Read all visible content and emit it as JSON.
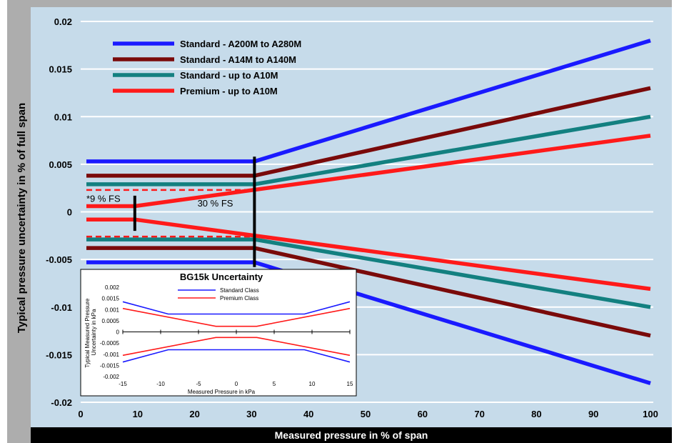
{
  "chart_data": [
    {
      "type": "line",
      "title": "",
      "xlabel": "Measured pressure in % of span",
      "ylabel": "Typical pressure uncertainty in % of full span",
      "xlim": [
        0,
        100
      ],
      "ylim": [
        -0.02,
        0.02
      ],
      "xticks": [
        0,
        10,
        20,
        30,
        40,
        50,
        60,
        70,
        80,
        90,
        100
      ],
      "xtick_labels": [
        "0",
        "10",
        "20",
        "30",
        "40",
        "50",
        "60",
        "70",
        "80",
        "90",
        "100"
      ],
      "yticks": [
        0.02,
        0.015,
        0.01,
        0.005,
        0,
        -0.005,
        -0.01,
        -0.015,
        -0.02
      ],
      "ytick_labels": [
        "0.02",
        "0.015",
        "0.01",
        "0.005",
        "0",
        "-0.005",
        "-0.01",
        "-0.015",
        "-0.02"
      ],
      "grid": "horizontal",
      "legend_position": "top-left",
      "series": [
        {
          "name": "Standard - A200M to A280M",
          "color": "#1a1aff",
          "upper": [
            [
              1,
              0.0053
            ],
            [
              30.5,
              0.0053
            ],
            [
              100,
              0.018
            ]
          ],
          "lower": [
            [
              1,
              -0.0053
            ],
            [
              30.5,
              -0.0053
            ],
            [
              100,
              -0.018
            ]
          ]
        },
        {
          "name": "Standard - A14M to A140M",
          "color": "#7a0a0a",
          "upper": [
            [
              1,
              0.0038
            ],
            [
              30.5,
              0.0038
            ],
            [
              100,
              0.013
            ]
          ],
          "lower": [
            [
              1,
              -0.0038
            ],
            [
              30.5,
              -0.0038
            ],
            [
              100,
              -0.013
            ]
          ]
        },
        {
          "name": "Standard - up to A10M",
          "color": "#138080",
          "upper": [
            [
              1,
              0.0029
            ],
            [
              30.5,
              0.0029
            ],
            [
              100,
              0.01
            ]
          ],
          "lower": [
            [
              1,
              -0.0029
            ],
            [
              30.5,
              -0.0029
            ],
            [
              100,
              -0.01
            ]
          ]
        },
        {
          "name": "Premium - up to A10M",
          "color": "#ff1a1a",
          "upper": [
            [
              1,
              0.0006
            ],
            [
              9.5,
              0.0006
            ],
            [
              100,
              0.008
            ]
          ],
          "lower": [
            [
              1,
              -0.0008
            ],
            [
              9.5,
              -0.0008
            ],
            [
              100,
              -0.0081
            ]
          ]
        }
      ],
      "dashed_levels": {
        "color": "#ff1a1a",
        "values": [
          0.0023,
          -0.0026
        ],
        "x_range": [
          1,
          30.5
        ]
      },
      "annotations": [
        {
          "text": "*9 % FS",
          "x": 1,
          "y": 0.00105
        },
        {
          "text": "30 % FS",
          "x": 20.5,
          "y": 0.00055
        }
      ],
      "markers": [
        {
          "x": 9.5,
          "y_range": [
            -0.002,
            0.0017
          ]
        },
        {
          "x": 30.5,
          "y_range": [
            -0.0058,
            0.0058
          ]
        }
      ]
    },
    {
      "type": "line",
      "title": "BG15k Uncertainty",
      "xlabel": "Measured Pressure in kPa",
      "ylabel": "Typical Measured Pressure Uncertainty in kPa",
      "xlim": [
        -15,
        15
      ],
      "ylim": [
        -0.002,
        0.002
      ],
      "xticks": [
        -15,
        -10,
        -5,
        0,
        5,
        10,
        15
      ],
      "xtick_labels": [
        "-15",
        "-10",
        "-5",
        "0",
        "5",
        "10",
        "15"
      ],
      "yticks": [
        0.002,
        0.0015,
        0.001,
        0.0005,
        0,
        -0.0005,
        -0.001,
        -0.0015,
        -0.002
      ],
      "ytick_labels": [
        "0.002",
        "0.0015",
        "0.001",
        "0.0005",
        "0",
        "-0.0005",
        "-0.001",
        "-0.0015",
        "-0.002"
      ],
      "series": [
        {
          "name": "Standard Class",
          "color": "#1a1aff",
          "upper": [
            [
              -15,
              0.00135
            ],
            [
              -9,
              0.0008
            ],
            [
              9,
              0.0008
            ],
            [
              15,
              0.00135
            ]
          ],
          "lower": [
            [
              -15,
              -0.00135
            ],
            [
              -9,
              -0.0008
            ],
            [
              9,
              -0.0008
            ],
            [
              15,
              -0.00135
            ]
          ]
        },
        {
          "name": "Premium Class",
          "color": "#ff1a1a",
          "upper": [
            [
              -15,
              0.00105
            ],
            [
              -2.7,
              0.00025
            ],
            [
              2.7,
              0.00025
            ],
            [
              15,
              0.00105
            ]
          ],
          "lower": [
            [
              -15,
              -0.00105
            ],
            [
              -2.7,
              -0.00025
            ],
            [
              2.7,
              -0.00025
            ],
            [
              15,
              -0.00105
            ]
          ]
        }
      ]
    }
  ]
}
